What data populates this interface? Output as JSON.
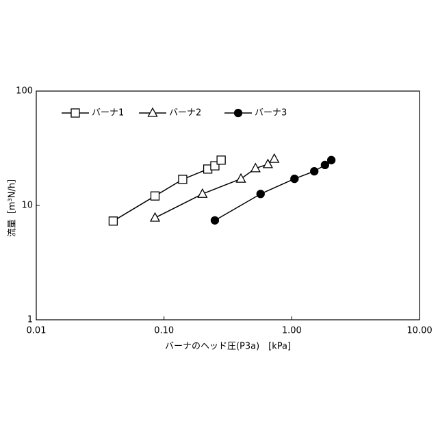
{
  "chart_data": {
    "type": "line",
    "xlabel": "バーナのヘッド圧(P3a)　[kPa]",
    "ylabel": "流量［m³N/h］",
    "xscale": "log",
    "yscale": "log",
    "xlim": [
      0.01,
      10
    ],
    "ylim": [
      1,
      100
    ],
    "xticks": [
      {
        "value": 0.01,
        "label": "0.01"
      },
      {
        "value": 0.1,
        "label": "0.10"
      },
      {
        "value": 1,
        "label": "1.00"
      },
      {
        "value": 10,
        "label": "10.00"
      }
    ],
    "yticks": [
      1,
      10,
      100
    ],
    "legend": "upper left",
    "series": [
      {
        "name": "バーナ1",
        "color": "#000000",
        "marker": "square",
        "marker_fill": "#ffffff",
        "x": [
          0.04,
          0.085,
          0.14,
          0.22,
          0.25,
          0.28
        ],
        "values": [
          7.3,
          12.1,
          16.9,
          20.8,
          22.2,
          24.9
        ]
      },
      {
        "name": "バーナ2",
        "color": "#000000",
        "marker": "triangle",
        "marker_fill": "#ffffff",
        "x": [
          0.085,
          0.2,
          0.4,
          0.52,
          0.65,
          0.73
        ],
        "values": [
          7.8,
          12.6,
          17.1,
          21.1,
          22.9,
          25.5
        ]
      },
      {
        "name": "バーナ3",
        "color": "#000000",
        "marker": "circle",
        "marker_fill": "#000000",
        "x": [
          0.25,
          0.57,
          1.05,
          1.5,
          1.82,
          2.04
        ],
        "values": [
          7.4,
          12.6,
          17.1,
          19.9,
          22.6,
          24.9
        ]
      }
    ]
  }
}
